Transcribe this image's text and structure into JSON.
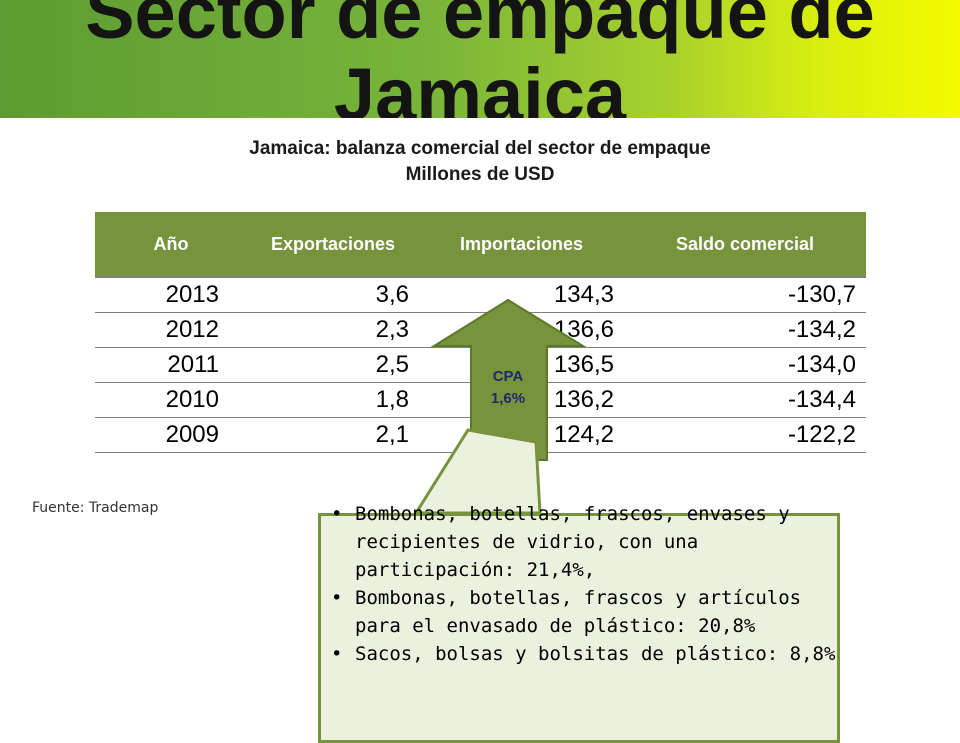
{
  "slide": {
    "title": "Sector de empaque de Jamaica",
    "chart_title_line1": "Jamaica: balanza comercial del sector de empaque",
    "chart_title_line2": "Millones de USD",
    "source": "Fuente: Trademap"
  },
  "table": {
    "headers": [
      "Año",
      "Exportaciones",
      "Importaciones",
      "Saldo comercial"
    ],
    "rows": [
      [
        "2013",
        "3,6",
        "134,3",
        "-130,7"
      ],
      [
        "2012",
        "2,3",
        "136,6",
        "-134,2"
      ],
      [
        "2011",
        "2,5",
        "136,5",
        "-134,0"
      ],
      [
        "2010",
        "1,8",
        "136,2",
        "-134,4"
      ],
      [
        "2009",
        "2,1",
        "124,2",
        "-122,2"
      ]
    ]
  },
  "arrow": {
    "label_line1": "CPA",
    "label_line2": "1,6%",
    "fill": "#77933c"
  },
  "callout": {
    "items": [
      "Bombonas, botellas, frascos, envases y recipientes de vidrio, con una participación: 21,4%,",
      "Bombonas, botellas, frascos y artículos para el envasado de plástico: 20,8%",
      "Sacos, bolsas y bolsitas de plástico: 8,8%"
    ],
    "bullet": "•"
  },
  "colors": {
    "header_bg": "#77933c",
    "callout_bg": "#ebf1de",
    "banner_start": "#5d9b32",
    "banner_end": "#f4fb00"
  }
}
